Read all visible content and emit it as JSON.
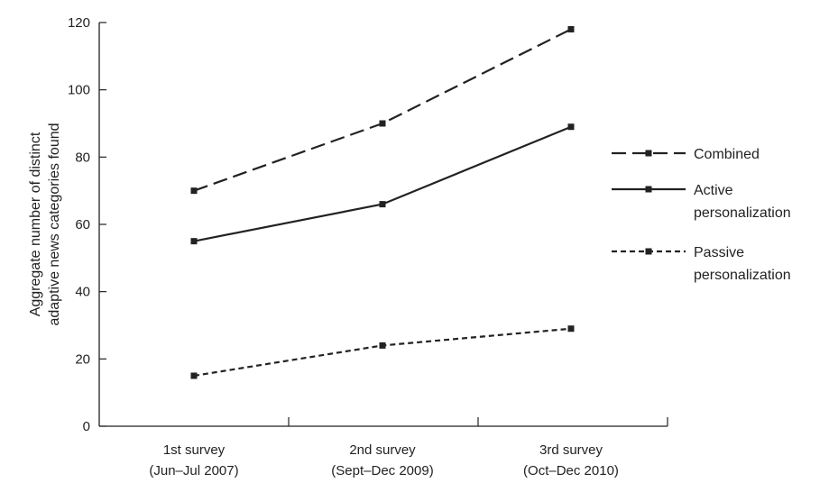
{
  "chart_data": {
    "type": "line",
    "title": "",
    "ylabel_lines": [
      "Aggregate number of distinct",
      "adaptive news categories found"
    ],
    "xlabel": "",
    "categories": [
      [
        "1st survey",
        "(Jun–Jul 2007)"
      ],
      [
        "2nd survey",
        "(Sept–Dec 2009)"
      ],
      [
        "3rd survey",
        "(Oct–Dec 2010)"
      ]
    ],
    "ylim": [
      0,
      120
    ],
    "yticks": [
      "0",
      "20",
      "40",
      "60",
      "80",
      "100",
      "120"
    ],
    "grid": false,
    "legend_position": "right",
    "series": [
      {
        "name_lines": [
          "Combined"
        ],
        "values": [
          70,
          90,
          118
        ],
        "line_style": "long-dash",
        "color": "#222222"
      },
      {
        "name_lines": [
          "Active",
          "personalization"
        ],
        "values": [
          55,
          66,
          89
        ],
        "line_style": "solid",
        "color": "#222222"
      },
      {
        "name_lines": [
          "Passive",
          "personalization"
        ],
        "values": [
          15,
          24,
          29
        ],
        "line_style": "short-dash",
        "color": "#222222"
      }
    ]
  }
}
